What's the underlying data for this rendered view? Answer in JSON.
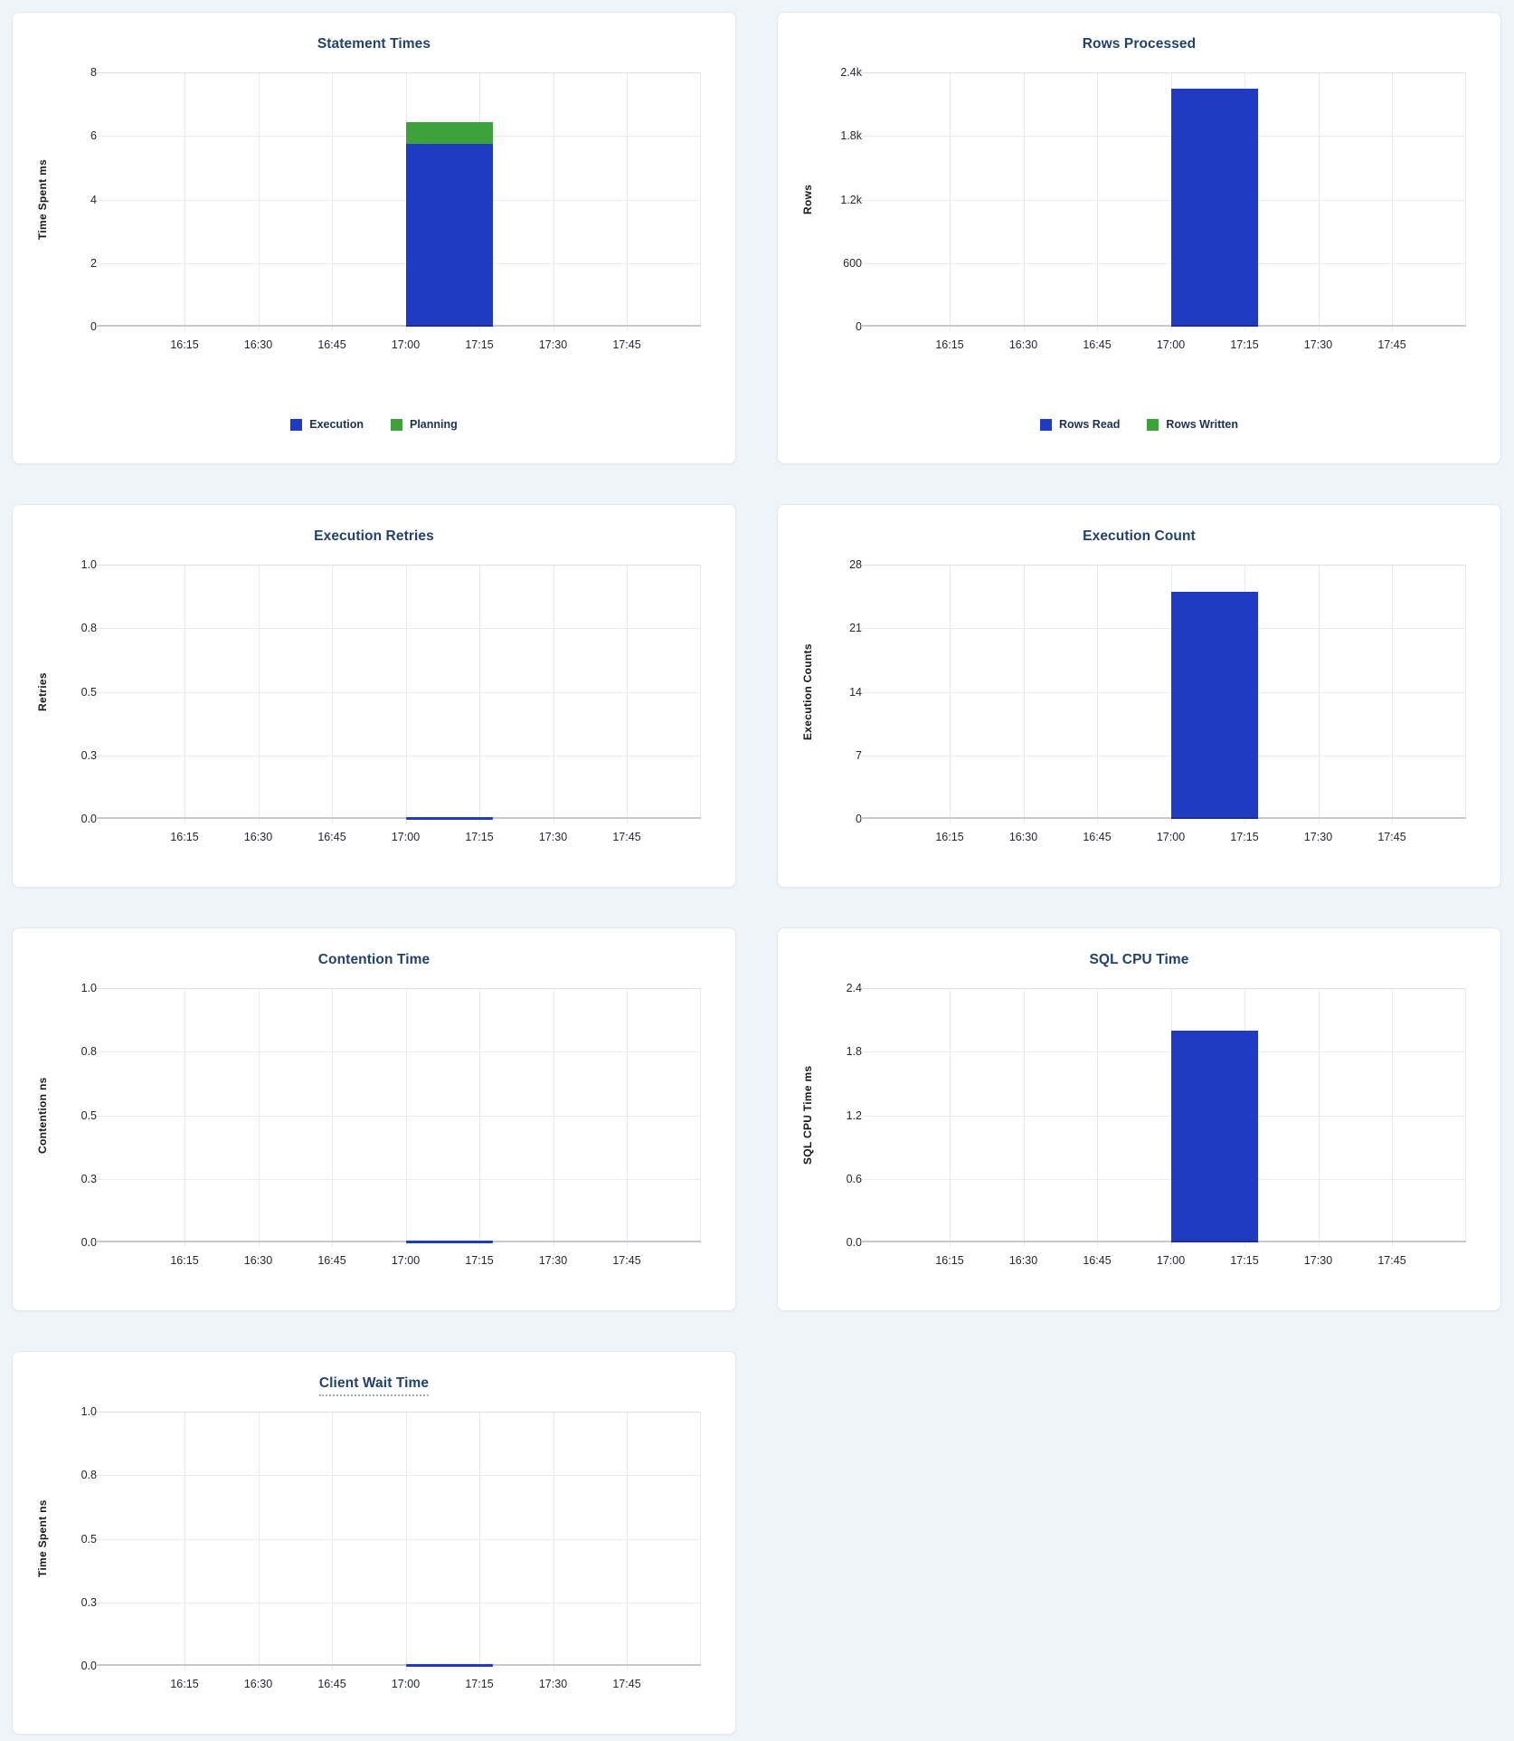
{
  "page": {
    "background": "#EFF4F8"
  },
  "colors": {
    "bar_blue": "#1F3BC2",
    "bar_green": "#3EA23C",
    "title_navy": "#22416B",
    "gridline": "#E9EBEF",
    "axis_line": "#C6C9CF"
  },
  "xticks": [
    "16:15",
    "16:30",
    "16:45",
    "17:00",
    "17:15",
    "17:30",
    "17:45"
  ],
  "chart_data": [
    {
      "type": "bar",
      "title": "Statement Times",
      "ylabel": "Time Spent ms",
      "yticks": [
        "0",
        "2",
        "4",
        "6",
        "8"
      ],
      "ymax": 8,
      "xticks": [
        "16:15",
        "16:30",
        "16:45",
        "17:00",
        "17:15",
        "17:30",
        "17:45"
      ],
      "bucket": {
        "start": "17:00",
        "end": "17:15"
      },
      "series": [
        {
          "name": "Execution",
          "color": "#1F3BC2",
          "value": 5.75
        },
        {
          "name": "Planning",
          "color": "#3EA23C",
          "value": 0.68
        }
      ],
      "legend": true,
      "legend_position": "bottom",
      "grid": true,
      "tooltip_title": false
    },
    {
      "type": "bar",
      "title": "Rows Processed",
      "ylabel": "Rows",
      "yticks": [
        "0",
        "600",
        "1.2k",
        "1.8k",
        "2.4k"
      ],
      "ymax": 2400,
      "xticks": [
        "16:15",
        "16:30",
        "16:45",
        "17:00",
        "17:15",
        "17:30",
        "17:45"
      ],
      "bucket": {
        "start": "17:00",
        "end": "17:15"
      },
      "series": [
        {
          "name": "Rows Read",
          "color": "#1F3BC2",
          "value": 2250
        },
        {
          "name": "Rows Written",
          "color": "#3EA23C",
          "value": 0
        }
      ],
      "legend": true,
      "legend_position": "bottom",
      "grid": true,
      "tooltip_title": false
    },
    {
      "type": "bar",
      "title": "Execution Retries",
      "ylabel": "Retries",
      "yticks": [
        "0.0",
        "0.3",
        "0.5",
        "0.8",
        "1.0"
      ],
      "ymax": 1.0,
      "xticks": [
        "16:15",
        "16:30",
        "16:45",
        "17:00",
        "17:15",
        "17:30",
        "17:45"
      ],
      "bucket": {
        "start": "17:00",
        "end": "17:15"
      },
      "series": [
        {
          "name": "Retries",
          "color": "#1F3BC2",
          "value": 0
        }
      ],
      "legend": false,
      "grid": true,
      "tooltip_title": false
    },
    {
      "type": "bar",
      "title": "Execution Count",
      "ylabel": "Execution Counts",
      "yticks": [
        "0",
        "7",
        "14",
        "21",
        "28"
      ],
      "ymax": 28,
      "xticks": [
        "16:15",
        "16:30",
        "16:45",
        "17:00",
        "17:15",
        "17:30",
        "17:45"
      ],
      "bucket": {
        "start": "17:00",
        "end": "17:15"
      },
      "series": [
        {
          "name": "Execution Count",
          "color": "#1F3BC2",
          "value": 25
        }
      ],
      "legend": false,
      "grid": true,
      "tooltip_title": false
    },
    {
      "type": "bar",
      "title": "Contention Time",
      "ylabel": "Contention ns",
      "yticks": [
        "0.0",
        "0.3",
        "0.5",
        "0.8",
        "1.0"
      ],
      "ymax": 1.0,
      "xticks": [
        "16:15",
        "16:30",
        "16:45",
        "17:00",
        "17:15",
        "17:30",
        "17:45"
      ],
      "bucket": {
        "start": "17:00",
        "end": "17:15"
      },
      "series": [
        {
          "name": "Contention",
          "color": "#1F3BC2",
          "value": 0
        }
      ],
      "legend": false,
      "grid": true,
      "tooltip_title": false
    },
    {
      "type": "bar",
      "title": "SQL CPU Time",
      "ylabel": "SQL CPU Time ms",
      "yticks": [
        "0.0",
        "0.6",
        "1.2",
        "1.8",
        "2.4"
      ],
      "ymax": 2.4,
      "xticks": [
        "16:15",
        "16:30",
        "16:45",
        "17:00",
        "17:15",
        "17:30",
        "17:45"
      ],
      "bucket": {
        "start": "17:00",
        "end": "17:15"
      },
      "series": [
        {
          "name": "SQL CPU Time",
          "color": "#1F3BC2",
          "value": 2.0
        }
      ],
      "legend": false,
      "grid": true,
      "tooltip_title": false
    },
    {
      "type": "bar",
      "title": "Client Wait Time",
      "ylabel": "Time Spent ns",
      "yticks": [
        "0.0",
        "0.3",
        "0.5",
        "0.8",
        "1.0"
      ],
      "ymax": 1.0,
      "xticks": [
        "16:15",
        "16:30",
        "16:45",
        "17:00",
        "17:15",
        "17:30",
        "17:45"
      ],
      "bucket": {
        "start": "17:00",
        "end": "17:15"
      },
      "series": [
        {
          "name": "Client Wait",
          "color": "#1F3BC2",
          "value": 0
        }
      ],
      "legend": false,
      "grid": true,
      "tooltip_title": true
    }
  ]
}
